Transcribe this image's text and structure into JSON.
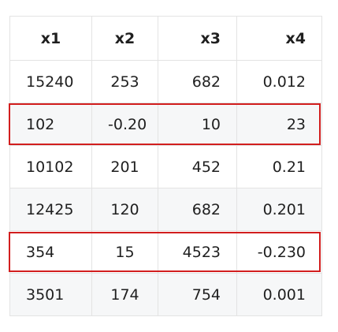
{
  "table": {
    "headers": [
      "x1",
      "x2",
      "x3",
      "x4"
    ],
    "rows": [
      [
        "15240",
        "253",
        "682",
        "0.012"
      ],
      [
        "102",
        "-0.20",
        "10",
        "23"
      ],
      [
        "10102",
        "201",
        "452",
        "0.21"
      ],
      [
        "12425",
        "120",
        "682",
        "0.201"
      ],
      [
        "354",
        "15",
        "4523",
        "-0.230"
      ],
      [
        "3501",
        "174",
        "754",
        "0.001"
      ]
    ],
    "highlighted_rows": [
      1,
      4
    ]
  },
  "colors": {
    "highlight": "#d21e1e",
    "zebra": "#f6f7f8",
    "grid": "#e3e3e3"
  }
}
